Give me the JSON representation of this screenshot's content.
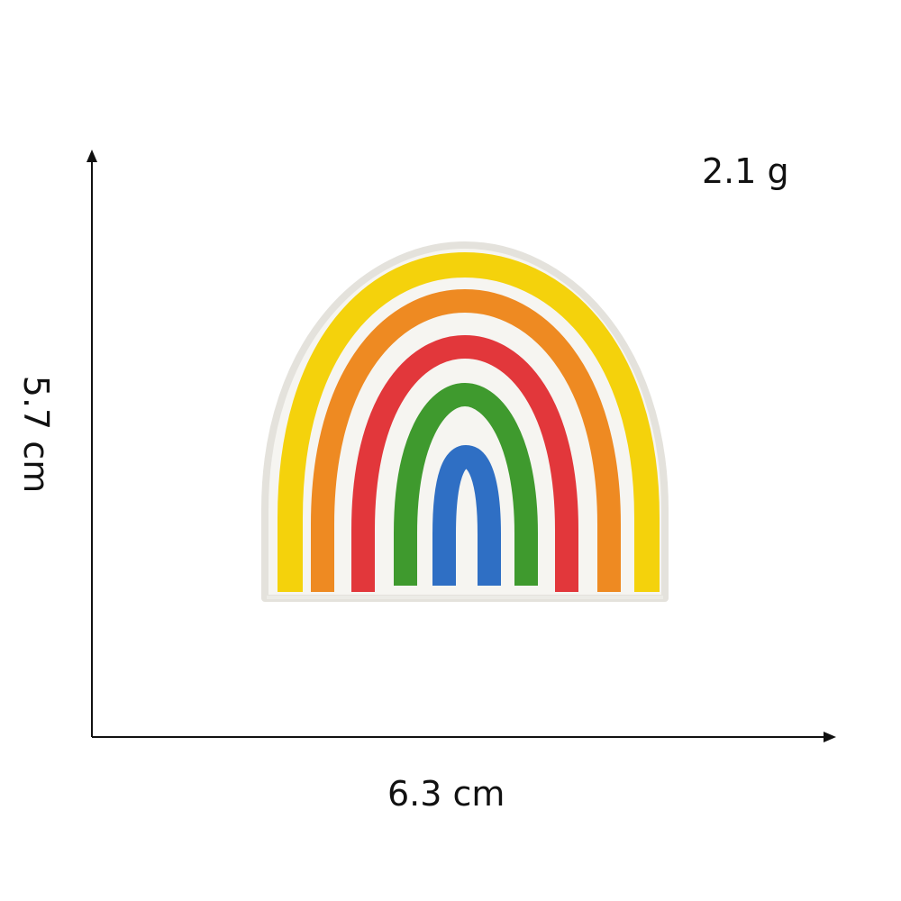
{
  "dimensions": {
    "width": "6.3 cm",
    "height": "5.7 cm"
  },
  "weight": "2.1 g",
  "product": {
    "stripe_colors": {
      "yellow": "#f4d20c",
      "orange": "#ee8a22",
      "red": "#e2373b",
      "green": "#3f9a2e",
      "blue": "#2f6fc4",
      "border": "#ecebe6",
      "base": "#f6f5f1"
    }
  }
}
